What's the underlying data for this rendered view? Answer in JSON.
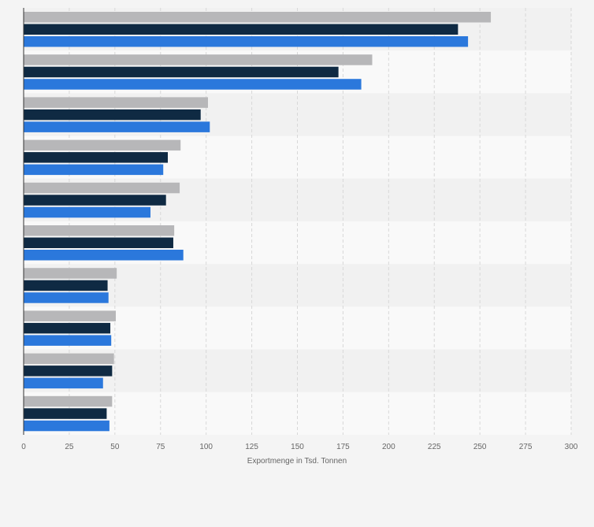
{
  "chart_data": {
    "type": "bar",
    "orientation": "horizontal",
    "title": "",
    "xlabel": "Exportmenge in Tsd. Tonnen",
    "ylabel": "",
    "xlim": [
      0,
      300
    ],
    "x_ticks": [
      0,
      25,
      50,
      75,
      100,
      125,
      150,
      175,
      200,
      225,
      250,
      275,
      300
    ],
    "grid": "vertical dashed",
    "legend": "none visible",
    "categories": [
      "",
      "",
      "",
      "",
      "",
      "",
      "",
      "",
      "",
      ""
    ],
    "series": [
      {
        "color": "#b7b7b9",
        "values": [
          256,
          191,
          101,
          86,
          85.5,
          82.5,
          51,
          50.5,
          49.5,
          48.5
        ]
      },
      {
        "color": "#0f2a43",
        "values": [
          238,
          172.5,
          97,
          79,
          78,
          82,
          46,
          47.5,
          48.5,
          45.5
        ]
      },
      {
        "color": "#2b78dc",
        "values": [
          243.5,
          185,
          102,
          76.5,
          69.5,
          87.5,
          46.5,
          48,
          43.5,
          47
        ]
      }
    ]
  },
  "colors": {
    "background": "#f4f4f4",
    "band_light": "#f9f9f9",
    "band_dark": "#f1f1f1",
    "gridline": "#d8d8d8",
    "axis": "#333333",
    "text": "#666666"
  }
}
